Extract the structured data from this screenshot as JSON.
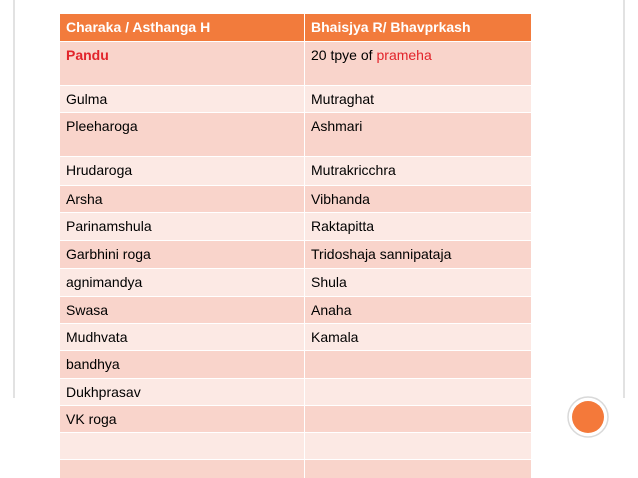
{
  "table": {
    "header": [
      "Charaka / Asthanga H",
      "Bhaisjya R/ Bhavprkash"
    ],
    "rows": [
      [
        "Pandu",
        [
          "20 tpye of",
          "prameha"
        ]
      ],
      [
        "Gulma",
        "Mutraghat"
      ],
      [
        "Pleeharoga",
        "Ashmari"
      ],
      [
        "Hrudaroga",
        "Mutrakricchra"
      ],
      [
        "Arsha",
        "Vibhanda"
      ],
      [
        "Parinamshula",
        "Raktapitta"
      ],
      [
        "Garbhini roga",
        "Tridoshaja sannipataja"
      ],
      [
        "agnimandya",
        "Shula"
      ],
      [
        "Swasa",
        "Anaha"
      ],
      [
        "Mudhvata",
        "Kamala"
      ],
      [
        "bandhya"
      ],
      [
        "Dukhprasav"
      ],
      [
        "VK roga"
      ]
    ]
  }
}
